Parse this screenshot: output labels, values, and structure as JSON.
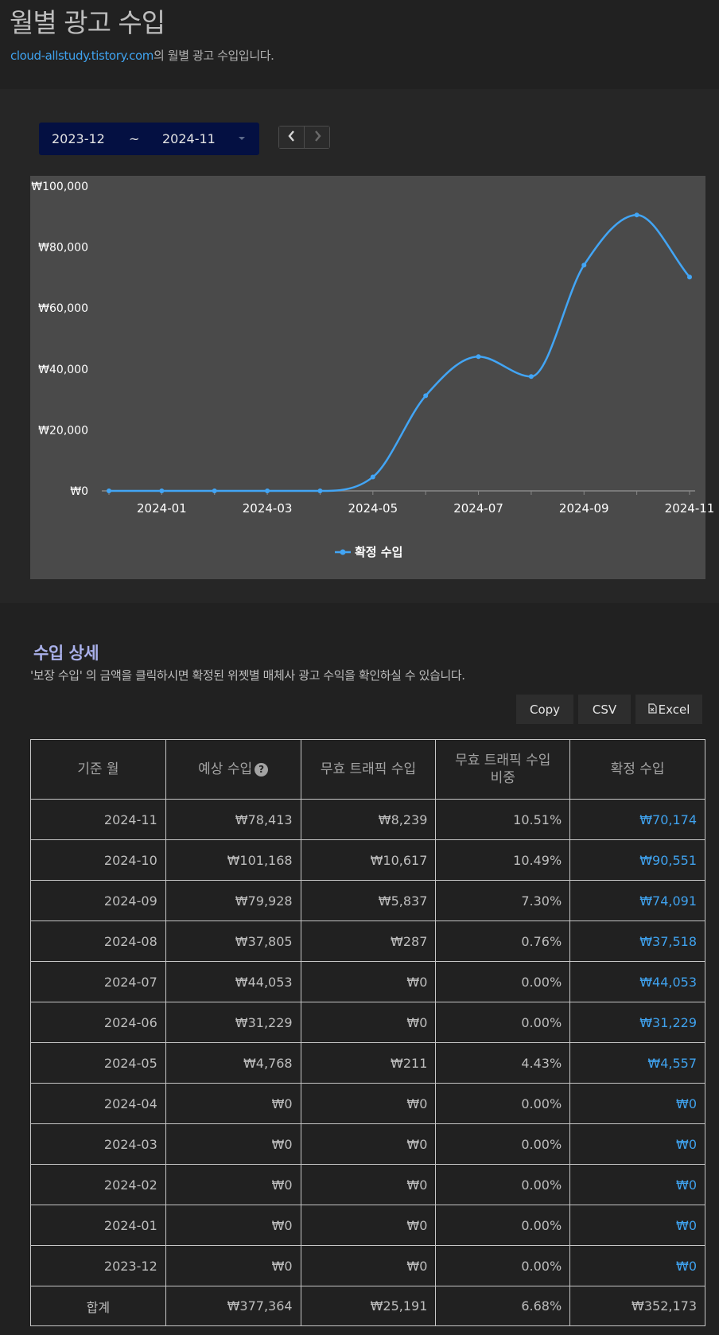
{
  "header": {
    "title": "월별 광고 수입",
    "site": "cloud-allstudy.tistory.com",
    "subtitle_suffix": "의 월별 광고 수입입니다."
  },
  "range": {
    "start": "2023-12",
    "separator": "~",
    "end": "2024-11"
  },
  "chart_data": {
    "type": "line",
    "categories": [
      "2023-12",
      "2024-01",
      "2024-02",
      "2024-03",
      "2024-04",
      "2024-05",
      "2024-06",
      "2024-07",
      "2024-08",
      "2024-09",
      "2024-10",
      "2024-11"
    ],
    "x_tick_labels": [
      "2024-01",
      "2024-03",
      "2024-05",
      "2024-07",
      "2024-09",
      "2024-11"
    ],
    "series": [
      {
        "name": "확정 수입",
        "color": "#42a5f5",
        "values": [
          0,
          0,
          0,
          0,
          0,
          4557,
          31229,
          44053,
          37518,
          74091,
          90551,
          70174
        ]
      }
    ],
    "ylim": [
      0,
      100000
    ],
    "y_tick_labels": [
      "₩100,000",
      "₩80,000",
      "₩60,000",
      "₩40,000",
      "₩20,000",
      "₩0"
    ],
    "legend": "bottom-center",
    "grid": false
  },
  "details": {
    "title": "수입 상세",
    "note": "'보장 수입' 의 금액을 클릭하시면 확정된 위젯별 매체사 광고 수익을 확인하실 수 있습니다.",
    "export": {
      "copy": "Copy",
      "csv": "CSV",
      "excel": "Excel"
    },
    "columns": {
      "month": "기준 월",
      "expected": "예상 수입",
      "invalid": "무효 트래픽 수입",
      "ratio_line1": "무효 트래픽 수입",
      "ratio_line2": "비중",
      "confirmed": "확정 수입"
    },
    "rows": [
      {
        "month": "2024-11",
        "expected": "₩78,413",
        "invalid": "₩8,239",
        "ratio": "10.51%",
        "confirmed": "₩70,174"
      },
      {
        "month": "2024-10",
        "expected": "₩101,168",
        "invalid": "₩10,617",
        "ratio": "10.49%",
        "confirmed": "₩90,551"
      },
      {
        "month": "2024-09",
        "expected": "₩79,928",
        "invalid": "₩5,837",
        "ratio": "7.30%",
        "confirmed": "₩74,091"
      },
      {
        "month": "2024-08",
        "expected": "₩37,805",
        "invalid": "₩287",
        "ratio": "0.76%",
        "confirmed": "₩37,518"
      },
      {
        "month": "2024-07",
        "expected": "₩44,053",
        "invalid": "₩0",
        "ratio": "0.00%",
        "confirmed": "₩44,053"
      },
      {
        "month": "2024-06",
        "expected": "₩31,229",
        "invalid": "₩0",
        "ratio": "0.00%",
        "confirmed": "₩31,229"
      },
      {
        "month": "2024-05",
        "expected": "₩4,768",
        "invalid": "₩211",
        "ratio": "4.43%",
        "confirmed": "₩4,557"
      },
      {
        "month": "2024-04",
        "expected": "₩0",
        "invalid": "₩0",
        "ratio": "0.00%",
        "confirmed": "₩0"
      },
      {
        "month": "2024-03",
        "expected": "₩0",
        "invalid": "₩0",
        "ratio": "0.00%",
        "confirmed": "₩0"
      },
      {
        "month": "2024-02",
        "expected": "₩0",
        "invalid": "₩0",
        "ratio": "0.00%",
        "confirmed": "₩0"
      },
      {
        "month": "2024-01",
        "expected": "₩0",
        "invalid": "₩0",
        "ratio": "0.00%",
        "confirmed": "₩0"
      },
      {
        "month": "2023-12",
        "expected": "₩0",
        "invalid": "₩0",
        "ratio": "0.00%",
        "confirmed": "₩0"
      }
    ],
    "total": {
      "month": "합계",
      "expected": "₩377,364",
      "invalid": "₩25,191",
      "ratio": "6.68%",
      "confirmed": "₩352,173"
    }
  }
}
